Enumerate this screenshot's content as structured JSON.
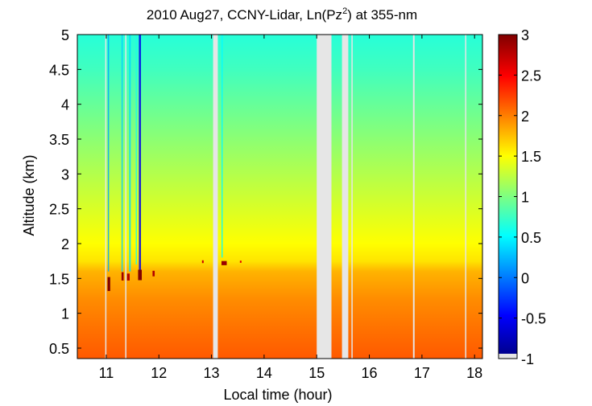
{
  "chart_data": {
    "type": "heatmap",
    "title": "2010 Aug27, CCNY-Lidar, Ln(Pz",
    "title_superscript": "2",
    "title_suffix": ") at 355-nm",
    "xlabel": "Local time (hour)",
    "ylabel": "Altitude (km)",
    "xlim": [
      10.45,
      18.15
    ],
    "ylim": [
      0.35,
      5.0
    ],
    "x_ticks": [
      11,
      12,
      13,
      14,
      15,
      16,
      17,
      18
    ],
    "x_tick_labels": [
      "11",
      "12",
      "13",
      "14",
      "15",
      "16",
      "17",
      "18"
    ],
    "y_ticks": [
      0.5,
      1,
      1.5,
      2,
      2.5,
      3,
      3.5,
      4,
      4.5,
      5
    ],
    "y_tick_labels": [
      "0.5",
      "1",
      "1.5",
      "2",
      "2.5",
      "3",
      "3.5",
      "4",
      "4.5",
      "5"
    ],
    "colorbar": {
      "range": [
        -1,
        3
      ],
      "ticks": [
        -1,
        -0.5,
        0,
        0.5,
        1,
        1.5,
        2,
        2.5,
        3
      ],
      "tick_labels": [
        "-1",
        "-0.5",
        "0",
        "0.5",
        "1",
        "1.5",
        "2",
        "2.5",
        "3"
      ],
      "colormap": "jet",
      "missing_color": "#e6e6e6"
    },
    "boundary_layer_top_km": 1.6,
    "profile_levels": [
      {
        "altitude_km": 0.35,
        "value": 2.15
      },
      {
        "altitude_km": 0.8,
        "value": 2.05
      },
      {
        "altitude_km": 1.2,
        "value": 1.95
      },
      {
        "altitude_km": 1.6,
        "value": 1.8
      },
      {
        "altitude_km": 1.75,
        "value": 1.6
      },
      {
        "altitude_km": 2.0,
        "value": 1.5
      },
      {
        "altitude_km": 2.5,
        "value": 1.35
      },
      {
        "altitude_km": 3.0,
        "value": 1.2
      },
      {
        "altitude_km": 3.5,
        "value": 1.05
      },
      {
        "altitude_km": 4.0,
        "value": 0.9
      },
      {
        "altitude_km": 4.5,
        "value": 0.75
      },
      {
        "altitude_km": 5.0,
        "value": 0.65
      }
    ],
    "data_gaps": [
      {
        "start": 10.98,
        "end": 10.99
      },
      {
        "start": 11.36,
        "end": 11.38
      },
      {
        "start": 13.03,
        "end": 13.12
      },
      {
        "start": 15.0,
        "end": 15.28
      },
      {
        "start": 15.48,
        "end": 15.6
      },
      {
        "start": 15.66,
        "end": 15.68
      },
      {
        "start": 16.83,
        "end": 16.86
      },
      {
        "start": 17.82,
        "end": 17.84
      }
    ],
    "cloud_streaks": [
      {
        "time": 11.04,
        "width": 0.02,
        "bottom_km": 1.6,
        "top_km": 5.0,
        "value": 0.15
      },
      {
        "time": 11.3,
        "width": 0.02,
        "bottom_km": 1.6,
        "top_km": 5.0,
        "value": 0.3
      },
      {
        "time": 11.45,
        "width": 0.03,
        "bottom_km": 1.6,
        "top_km": 5.0,
        "value": 0.35
      },
      {
        "time": 11.57,
        "width": 0.02,
        "bottom_km": 1.7,
        "top_km": 5.0,
        "value": 0.6
      },
      {
        "time": 11.64,
        "width": 0.04,
        "bottom_km": 1.6,
        "top_km": 5.0,
        "value": -0.6
      },
      {
        "time": 13.2,
        "width": 0.02,
        "bottom_km": 1.8,
        "top_km": 5.0,
        "value": 0.5
      }
    ],
    "high_backscatter_patches": [
      {
        "time": 11.05,
        "altitude_km": 1.42,
        "width": 0.05,
        "height_km": 0.2,
        "value": 3.0
      },
      {
        "time": 11.31,
        "altitude_km": 1.53,
        "width": 0.04,
        "height_km": 0.12,
        "value": 2.9
      },
      {
        "time": 11.42,
        "altitude_km": 1.52,
        "width": 0.05,
        "height_km": 0.1,
        "value": 2.8
      },
      {
        "time": 11.64,
        "altitude_km": 1.55,
        "width": 0.07,
        "height_km": 0.15,
        "value": 3.0
      },
      {
        "time": 11.9,
        "altitude_km": 1.57,
        "width": 0.04,
        "height_km": 0.08,
        "value": 2.8
      },
      {
        "time": 13.24,
        "altitude_km": 1.72,
        "width": 0.1,
        "height_km": 0.06,
        "value": 2.9
      },
      {
        "time": 12.83,
        "altitude_km": 1.74,
        "width": 0.02,
        "height_km": 0.04,
        "value": 2.7
      },
      {
        "time": 13.55,
        "altitude_km": 1.74,
        "width": 0.02,
        "height_km": 0.03,
        "value": 2.6
      }
    ]
  }
}
